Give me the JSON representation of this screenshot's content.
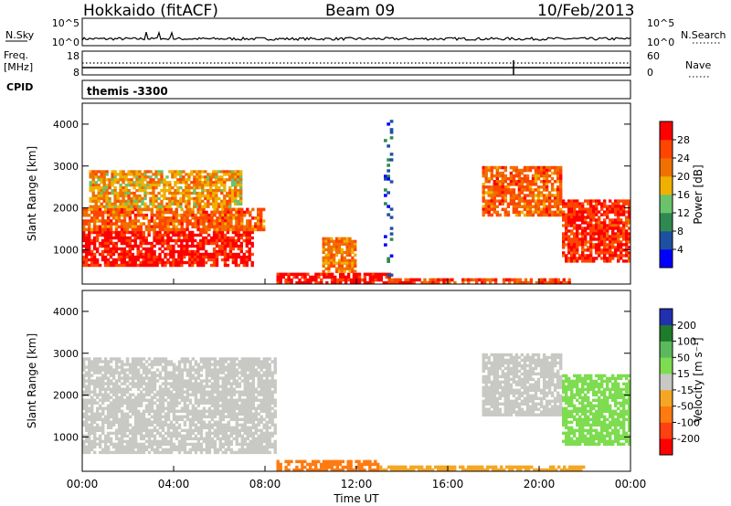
{
  "header": {
    "station": "Hokkaido (fitACF)",
    "beam": "Beam 09",
    "date": "10/Feb/2013"
  },
  "strip": {
    "nsky_label": "N.Sky",
    "nsky_ticks": [
      "10^5",
      "10^0"
    ],
    "nsearch_label": "N.Search",
    "nsearch_ticks": [
      "10^5",
      "10^0"
    ],
    "freq_label_line1": "Freq.",
    "freq_label_line2": "[MHz]",
    "freq_ticks": [
      "18",
      "8"
    ],
    "nave_label": "Nave",
    "nave_ticks": [
      "60",
      "0"
    ],
    "cpid_label": "CPID",
    "cpid_value": "themis -3300"
  },
  "colors": {
    "power_scale": [
      "#0000ff",
      "#1e50a0",
      "#2e8a50",
      "#6ac36a",
      "#f0b000",
      "#f07000",
      "#ff4500",
      "#ff0000"
    ],
    "velocity_scale": [
      "#2030b0",
      "#1f7a2a",
      "#5cb85c",
      "#7edc50",
      "#c8c8c4",
      "#f5a623",
      "#ff7a10",
      "#ff4010",
      "#ff0000"
    ],
    "ground_scatter": "#c8c8c4"
  },
  "chart_data": [
    {
      "type": "heatmap",
      "panel": "power",
      "ylabel": "Slant Range [km]",
      "y_ticks": [
        "1000",
        "2000",
        "3000",
        "4000"
      ],
      "ylim": [
        180,
        4500
      ],
      "x_ticks": [
        "00:00",
        "04:00",
        "08:00",
        "12:00",
        "16:00",
        "20:00",
        "00:00"
      ],
      "colorbar_label": "Power [dB]",
      "colorbar_ticks": [
        "4",
        "8",
        "12",
        "16",
        "20",
        "24",
        "28"
      ],
      "regions": [
        {
          "t0": 0.0,
          "t1": 7.5,
          "r0": 600,
          "r1": 1450,
          "value": 30
        },
        {
          "t0": 0.0,
          "t1": 8.0,
          "r0": 1450,
          "r1": 2000,
          "value": 24
        },
        {
          "t0": 0.3,
          "t1": 7.0,
          "r0": 2000,
          "r1": 2900,
          "value": 20
        },
        {
          "t0": 8.5,
          "t1": 13.5,
          "r0": 180,
          "r1": 450,
          "value": 30
        },
        {
          "t0": 13.5,
          "t1": 21.5,
          "r0": 180,
          "r1": 320,
          "value": 26
        },
        {
          "t0": 10.5,
          "t1": 12.0,
          "r0": 450,
          "r1": 1300,
          "value": 22
        },
        {
          "t0": 17.5,
          "t1": 21.0,
          "r0": 1800,
          "r1": 3000,
          "value": 24
        },
        {
          "t0": 21.0,
          "t1": 24.0,
          "r0": 700,
          "r1": 2200,
          "value": 28
        },
        {
          "t0": 13.2,
          "t1": 13.6,
          "r0": 300,
          "r1": 4300,
          "value": 6
        }
      ]
    },
    {
      "type": "heatmap",
      "panel": "velocity",
      "ylabel": "Slant Range [km]",
      "y_ticks": [
        "1000",
        "2000",
        "3000",
        "4000"
      ],
      "ylim": [
        180,
        4500
      ],
      "x_ticks": [
        "00:00",
        "04:00",
        "08:00",
        "12:00",
        "16:00",
        "20:00",
        "00:00"
      ],
      "xlabel": "Time UT",
      "colorbar_label": "Velocity [m s⁻¹]",
      "colorbar_ticks": [
        "-200",
        "-100",
        "-50",
        "-15",
        "15",
        "50",
        "100",
        "200"
      ],
      "regions": [
        {
          "t0": 0.0,
          "t1": 8.5,
          "r0": 600,
          "r1": 2900,
          "value": 0
        },
        {
          "t0": 8.5,
          "t1": 13.0,
          "r0": 180,
          "r1": 450,
          "value": -60
        },
        {
          "t0": 13.0,
          "t1": 22.0,
          "r0": 180,
          "r1": 320,
          "value": -40
        },
        {
          "t0": 17.5,
          "t1": 21.0,
          "r0": 1500,
          "r1": 3000,
          "value": 0
        },
        {
          "t0": 21.0,
          "t1": 24.0,
          "r0": 800,
          "r1": 2500,
          "value": 30
        }
      ]
    }
  ]
}
